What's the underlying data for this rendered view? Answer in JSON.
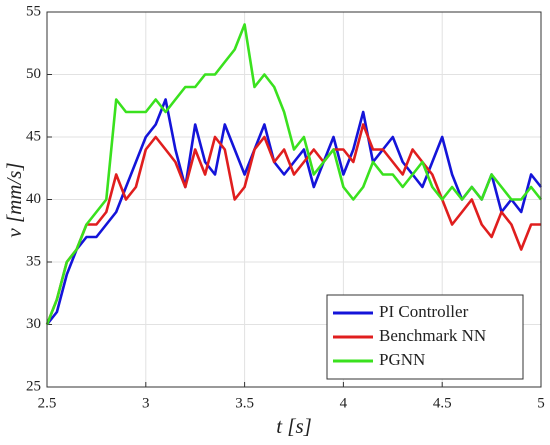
{
  "chart_data": {
    "type": "line",
    "xlabel": "t [s]",
    "ylabel": "v [mm/s]",
    "x": [
      2.5,
      2.55,
      2.6,
      2.65,
      2.7,
      2.75,
      2.8,
      2.85,
      2.9,
      2.95,
      3.0,
      3.05,
      3.1,
      3.15,
      3.2,
      3.25,
      3.3,
      3.35,
      3.4,
      3.45,
      3.5,
      3.55,
      3.6,
      3.65,
      3.7,
      3.75,
      3.8,
      3.85,
      3.9,
      3.95,
      4.0,
      4.05,
      4.1,
      4.15,
      4.2,
      4.25,
      4.3,
      4.35,
      4.4,
      4.45,
      4.5,
      4.55,
      4.6,
      4.65,
      4.7,
      4.75,
      4.8,
      4.85,
      4.9,
      4.95,
      5.0
    ],
    "series": [
      {
        "name": "PI Controller",
        "color": "#1414d9",
        "values": [
          30,
          31,
          34,
          36,
          37,
          37,
          38,
          39,
          41,
          43,
          45,
          46,
          48,
          44,
          41,
          46,
          43,
          42,
          46,
          44,
          42,
          44,
          46,
          43,
          42,
          43,
          44,
          41,
          43,
          45,
          42,
          44,
          47,
          43,
          44,
          45,
          43,
          42,
          41,
          43,
          45,
          42,
          40,
          41,
          40,
          42,
          39,
          40,
          39,
          42,
          41
        ]
      },
      {
        "name": "Benchmark NN",
        "color": "#e01e1e",
        "values": [
          30,
          32,
          35,
          36,
          38,
          38,
          39,
          42,
          40,
          41,
          44,
          45,
          44,
          43,
          41,
          44,
          42,
          45,
          44,
          40,
          41,
          44,
          45,
          43,
          44,
          42,
          43,
          44,
          43,
          44,
          44,
          43,
          46,
          44,
          44,
          43,
          42,
          44,
          43,
          42,
          40,
          38,
          39,
          40,
          38,
          37,
          39,
          38,
          36,
          38,
          38
        ]
      },
      {
        "name": "PGNN",
        "color": "#3ae11e",
        "values": [
          30,
          32,
          35,
          36,
          38,
          39,
          40,
          48,
          47,
          47,
          47,
          48,
          47,
          48,
          49,
          49,
          50,
          50,
          51,
          52,
          54,
          49,
          50,
          49,
          47,
          44,
          45,
          42,
          43,
          44,
          41,
          40,
          41,
          43,
          42,
          42,
          41,
          42,
          43,
          41,
          40,
          41,
          40,
          41,
          40,
          42,
          41,
          40,
          40,
          41,
          40
        ]
      }
    ],
    "xlim": [
      2.5,
      5
    ],
    "xticks": [
      2.5,
      3,
      3.5,
      4,
      4.5,
      5
    ],
    "ylim": [
      25,
      55
    ],
    "yticks": [
      25,
      30,
      35,
      40,
      45,
      50,
      55
    ],
    "grid": true,
    "legend": "lower right"
  }
}
